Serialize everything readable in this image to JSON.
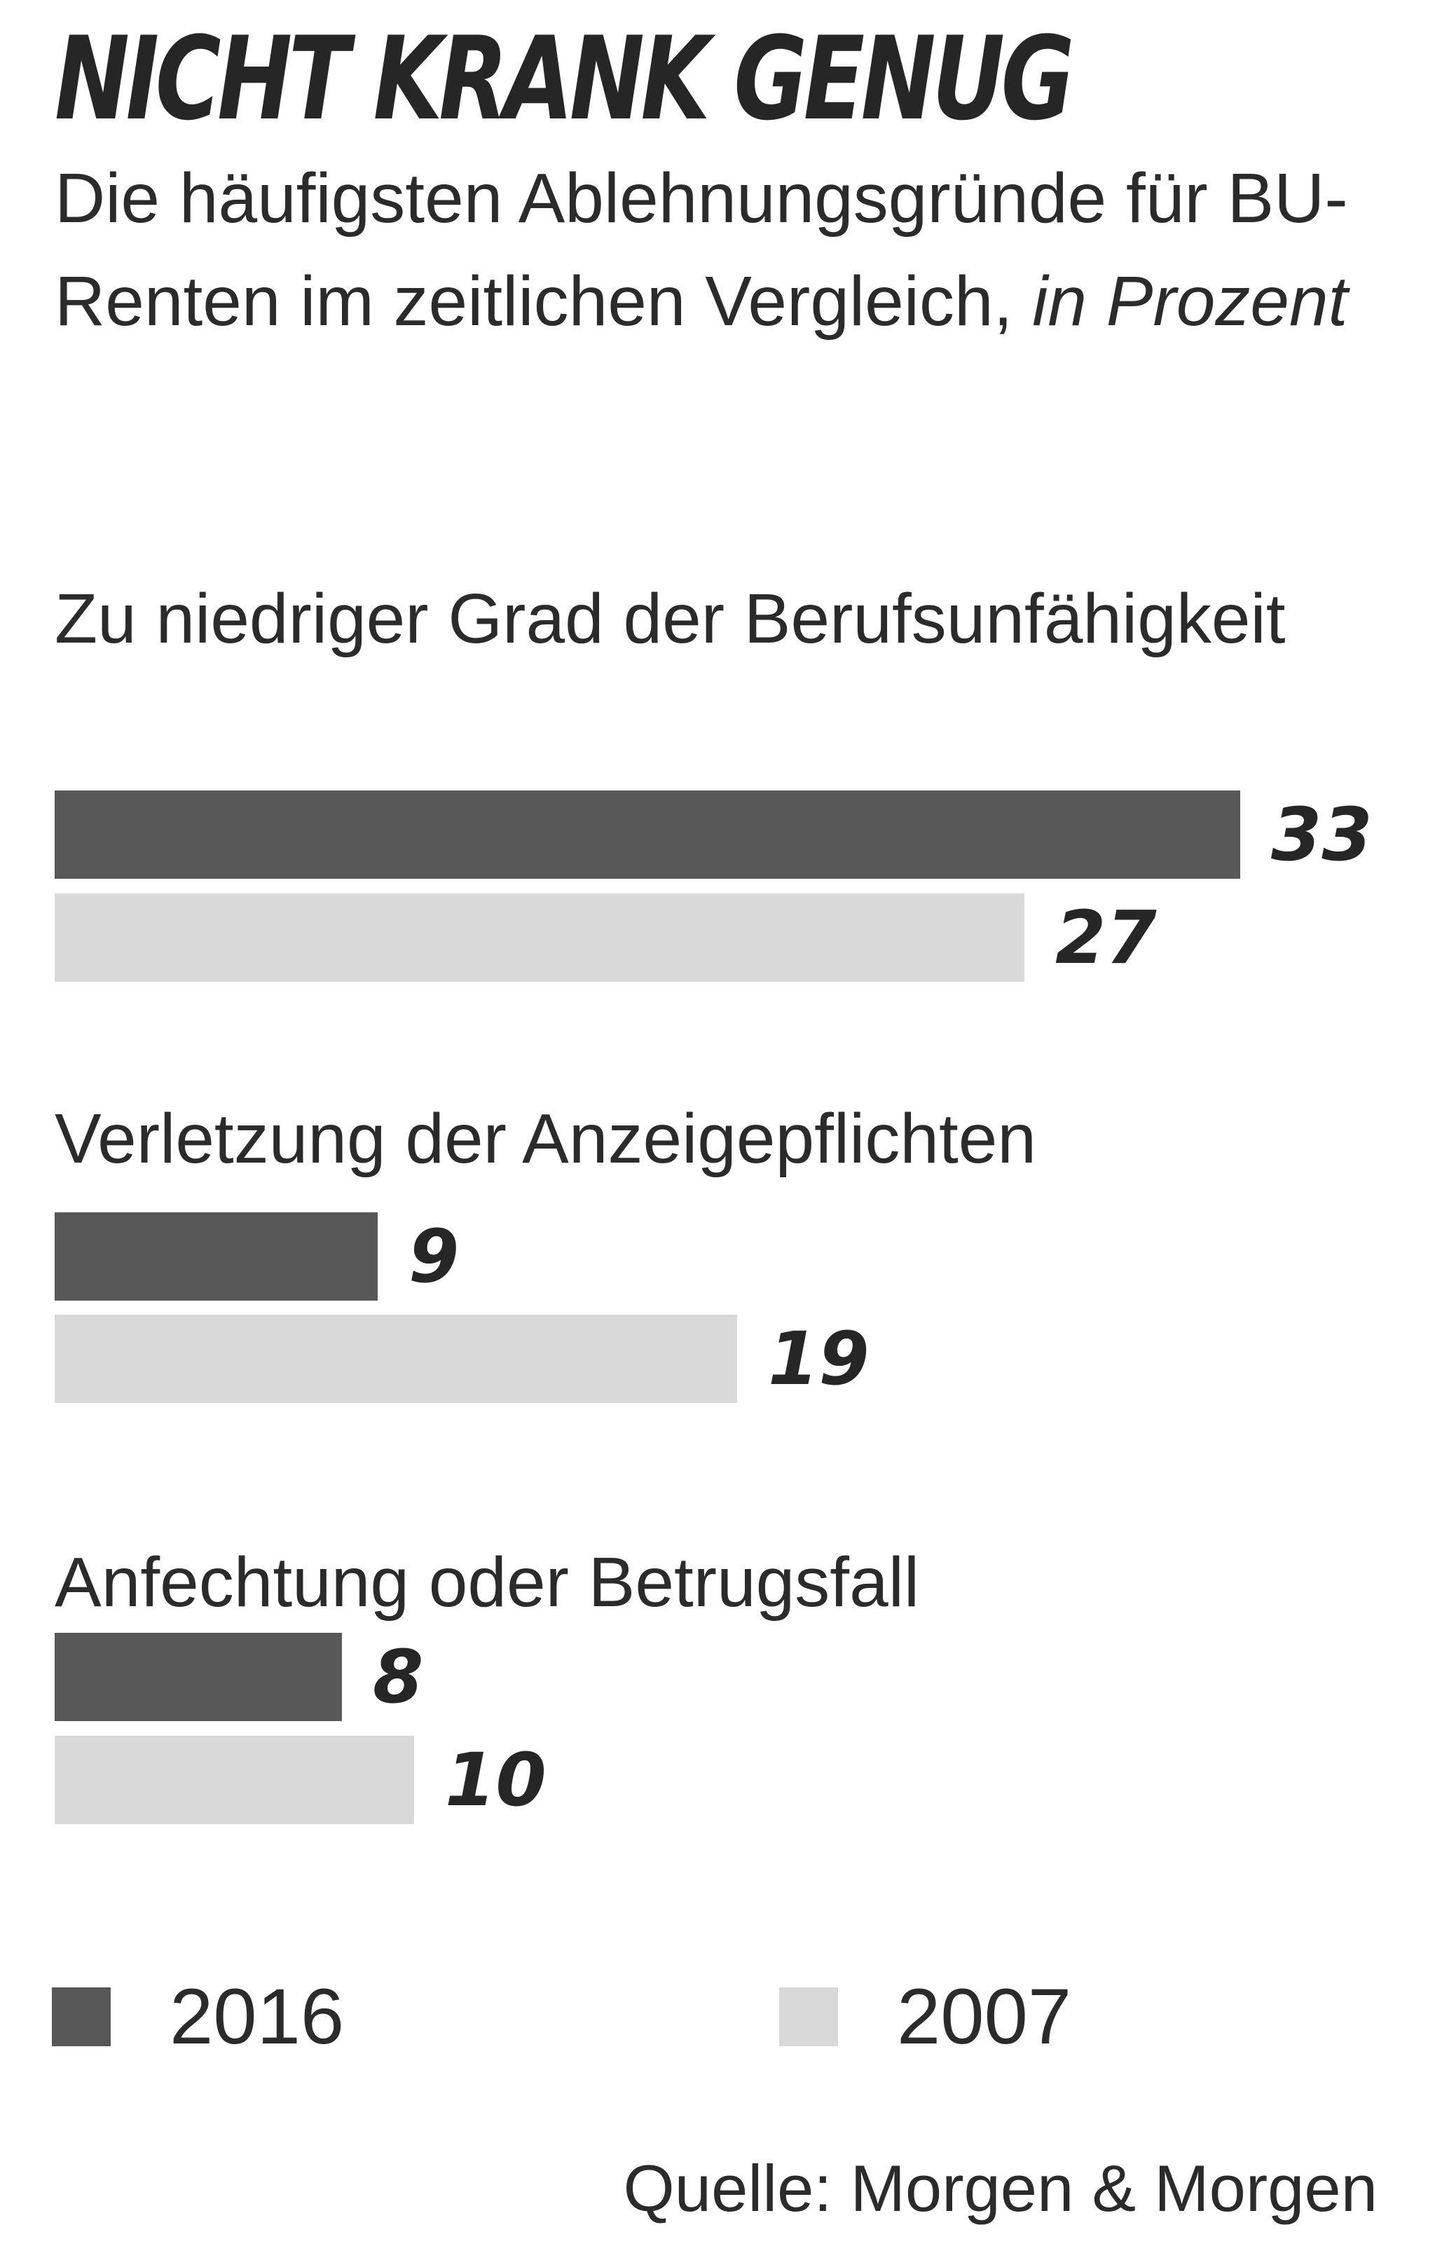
{
  "chart_data": {
    "type": "bar",
    "orientation": "horizontal",
    "title": "NICHT KRANK GENUG",
    "subtitle": "Die häufigsten Ablehnungsgründe für BU-Renten im zeitlichen Vergleich,",
    "unit": "in Prozent",
    "categories": [
      "Zu niedriger Grad der Berufsunfähigkeit",
      "Verletzung der Anzeigepflichten",
      "Anfechtung oder Betrugsfall"
    ],
    "series": [
      {
        "name": "2016",
        "values": [
          33,
          9,
          8
        ],
        "color": "#575757"
      },
      {
        "name": "2007",
        "values": [
          27,
          19,
          10
        ],
        "color": "#d9d9d9"
      }
    ],
    "xlim": [
      0,
      33
    ],
    "grid": false,
    "legend": "bottom",
    "source": "Quelle: Morgen & Morgen"
  }
}
